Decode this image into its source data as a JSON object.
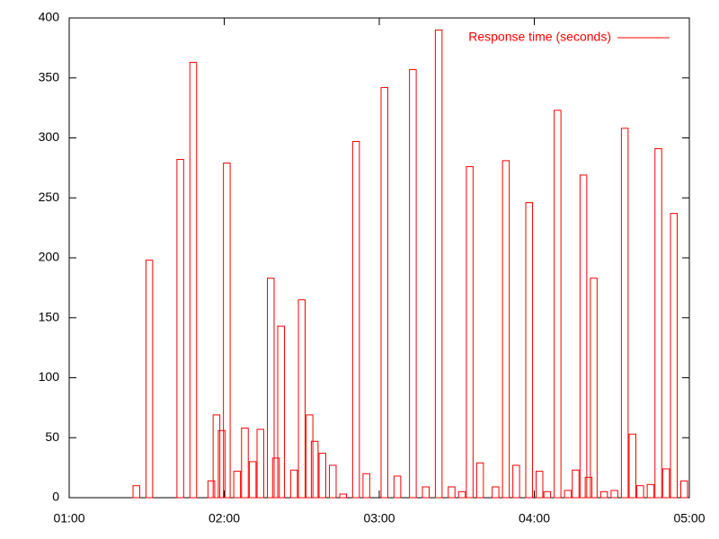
{
  "chart_data": {
    "type": "boxes",
    "x": [
      "01:26",
      "01:31",
      "01:43",
      "01:48",
      "01:55",
      "01:57",
      "01:59",
      "02:01",
      "02:05",
      "02:08",
      "02:11",
      "02:14",
      "02:18",
      "02:20",
      "02:22",
      "02:27",
      "02:30",
      "02:33",
      "02:35",
      "02:38",
      "02:42",
      "02:46",
      "02:51",
      "02:55",
      "03:02",
      "03:07",
      "03:13",
      "03:18",
      "03:23",
      "03:28",
      "03:32",
      "03:35",
      "03:39",
      "03:45",
      "03:49",
      "03:53",
      "03:58",
      "04:02",
      "04:05",
      "04:09",
      "04:13",
      "04:16",
      "04:19",
      "04:21",
      "04:23",
      "04:27",
      "04:31",
      "04:35",
      "04:38",
      "04:41",
      "04:45",
      "04:48",
      "04:51",
      "04:54",
      "04:58"
    ],
    "series": [
      {
        "name": "Response time (seconds)",
        "color": "#ff0000",
        "values": [
          10,
          198,
          282,
          363,
          14,
          69,
          56,
          279,
          22,
          58,
          30,
          57,
          183,
          33,
          143,
          23,
          165,
          69,
          47,
          37,
          27,
          3,
          297,
          20,
          342,
          18,
          357,
          9,
          390,
          9,
          5,
          276,
          29,
          9,
          281,
          27,
          246,
          22,
          5,
          323,
          6,
          23,
          269,
          17,
          183,
          5,
          6,
          308,
          53,
          10,
          11,
          291,
          24,
          237,
          14
        ]
      }
    ],
    "xlim": [
      "01:00",
      "05:00"
    ],
    "xticks": [
      "01:00",
      "02:00",
      "03:00",
      "04:00",
      "05:00"
    ],
    "ylim": [
      0,
      400
    ],
    "yticks": [
      0,
      50,
      100,
      150,
      200,
      250,
      300,
      350,
      400
    ],
    "legend": "top-right"
  }
}
